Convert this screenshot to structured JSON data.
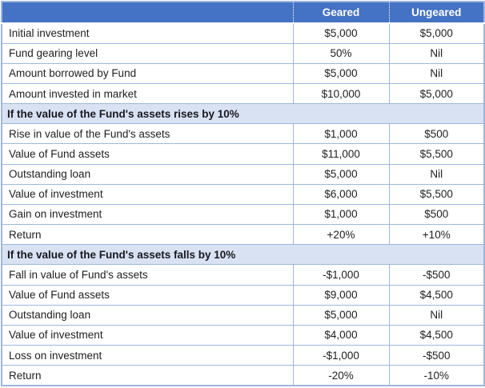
{
  "table": {
    "columns": [
      "",
      "Geared",
      "Ungeared"
    ],
    "rows": [
      {
        "type": "data",
        "label": "Initial investment",
        "geared": "$5,000",
        "ungeared": "$5,000"
      },
      {
        "type": "data",
        "label": "Fund gearing level",
        "geared": "50%",
        "ungeared": "Nil"
      },
      {
        "type": "data",
        "label": "Amount borrowed by Fund",
        "geared": "$5,000",
        "ungeared": "Nil"
      },
      {
        "type": "data",
        "label": "Amount invested in market",
        "geared": "$10,000",
        "ungeared": "$5,000"
      },
      {
        "type": "section",
        "label": "If the value of the Fund's assets rises by 10%"
      },
      {
        "type": "data",
        "label": "Rise in value of the Fund's assets",
        "geared": "$1,000",
        "ungeared": "$500"
      },
      {
        "type": "data",
        "label": "Value of Fund assets",
        "geared": "$11,000",
        "ungeared": "$5,500"
      },
      {
        "type": "data",
        "label": "Outstanding loan",
        "geared": "$5,000",
        "ungeared": "Nil"
      },
      {
        "type": "data",
        "label": "Value of investment",
        "geared": "$6,000",
        "ungeared": "$5,500"
      },
      {
        "type": "data",
        "label": "Gain on investment",
        "geared": "$1,000",
        "ungeared": "$500"
      },
      {
        "type": "data",
        "label": "Return",
        "geared": "+20%",
        "ungeared": "+10%"
      },
      {
        "type": "section",
        "label": "If the value of the Fund's assets falls by 10%"
      },
      {
        "type": "data",
        "label": "Fall in value of Fund's assets",
        "geared": "-$1,000",
        "ungeared": "-$500"
      },
      {
        "type": "data",
        "label": "Value of Fund assets",
        "geared": "$9,000",
        "ungeared": "$4,500"
      },
      {
        "type": "data",
        "label": "Outstanding loan",
        "geared": "$5,000",
        "ungeared": "Nil"
      },
      {
        "type": "data",
        "label": "Value of investment",
        "geared": "$4,000",
        "ungeared": "$4,500"
      },
      {
        "type": "data",
        "label": "Loss on investment",
        "geared": "-$1,000",
        "ungeared": "-$500"
      },
      {
        "type": "data",
        "label": "Return",
        "geared": "-20%",
        "ungeared": "-10%"
      }
    ]
  },
  "colors": {
    "header_bg": "#4472C4",
    "header_text": "#FFFFFF",
    "section_bg": "#D9E2F3",
    "border": "#9DB6DF",
    "body_text": "#1F1F1F"
  }
}
